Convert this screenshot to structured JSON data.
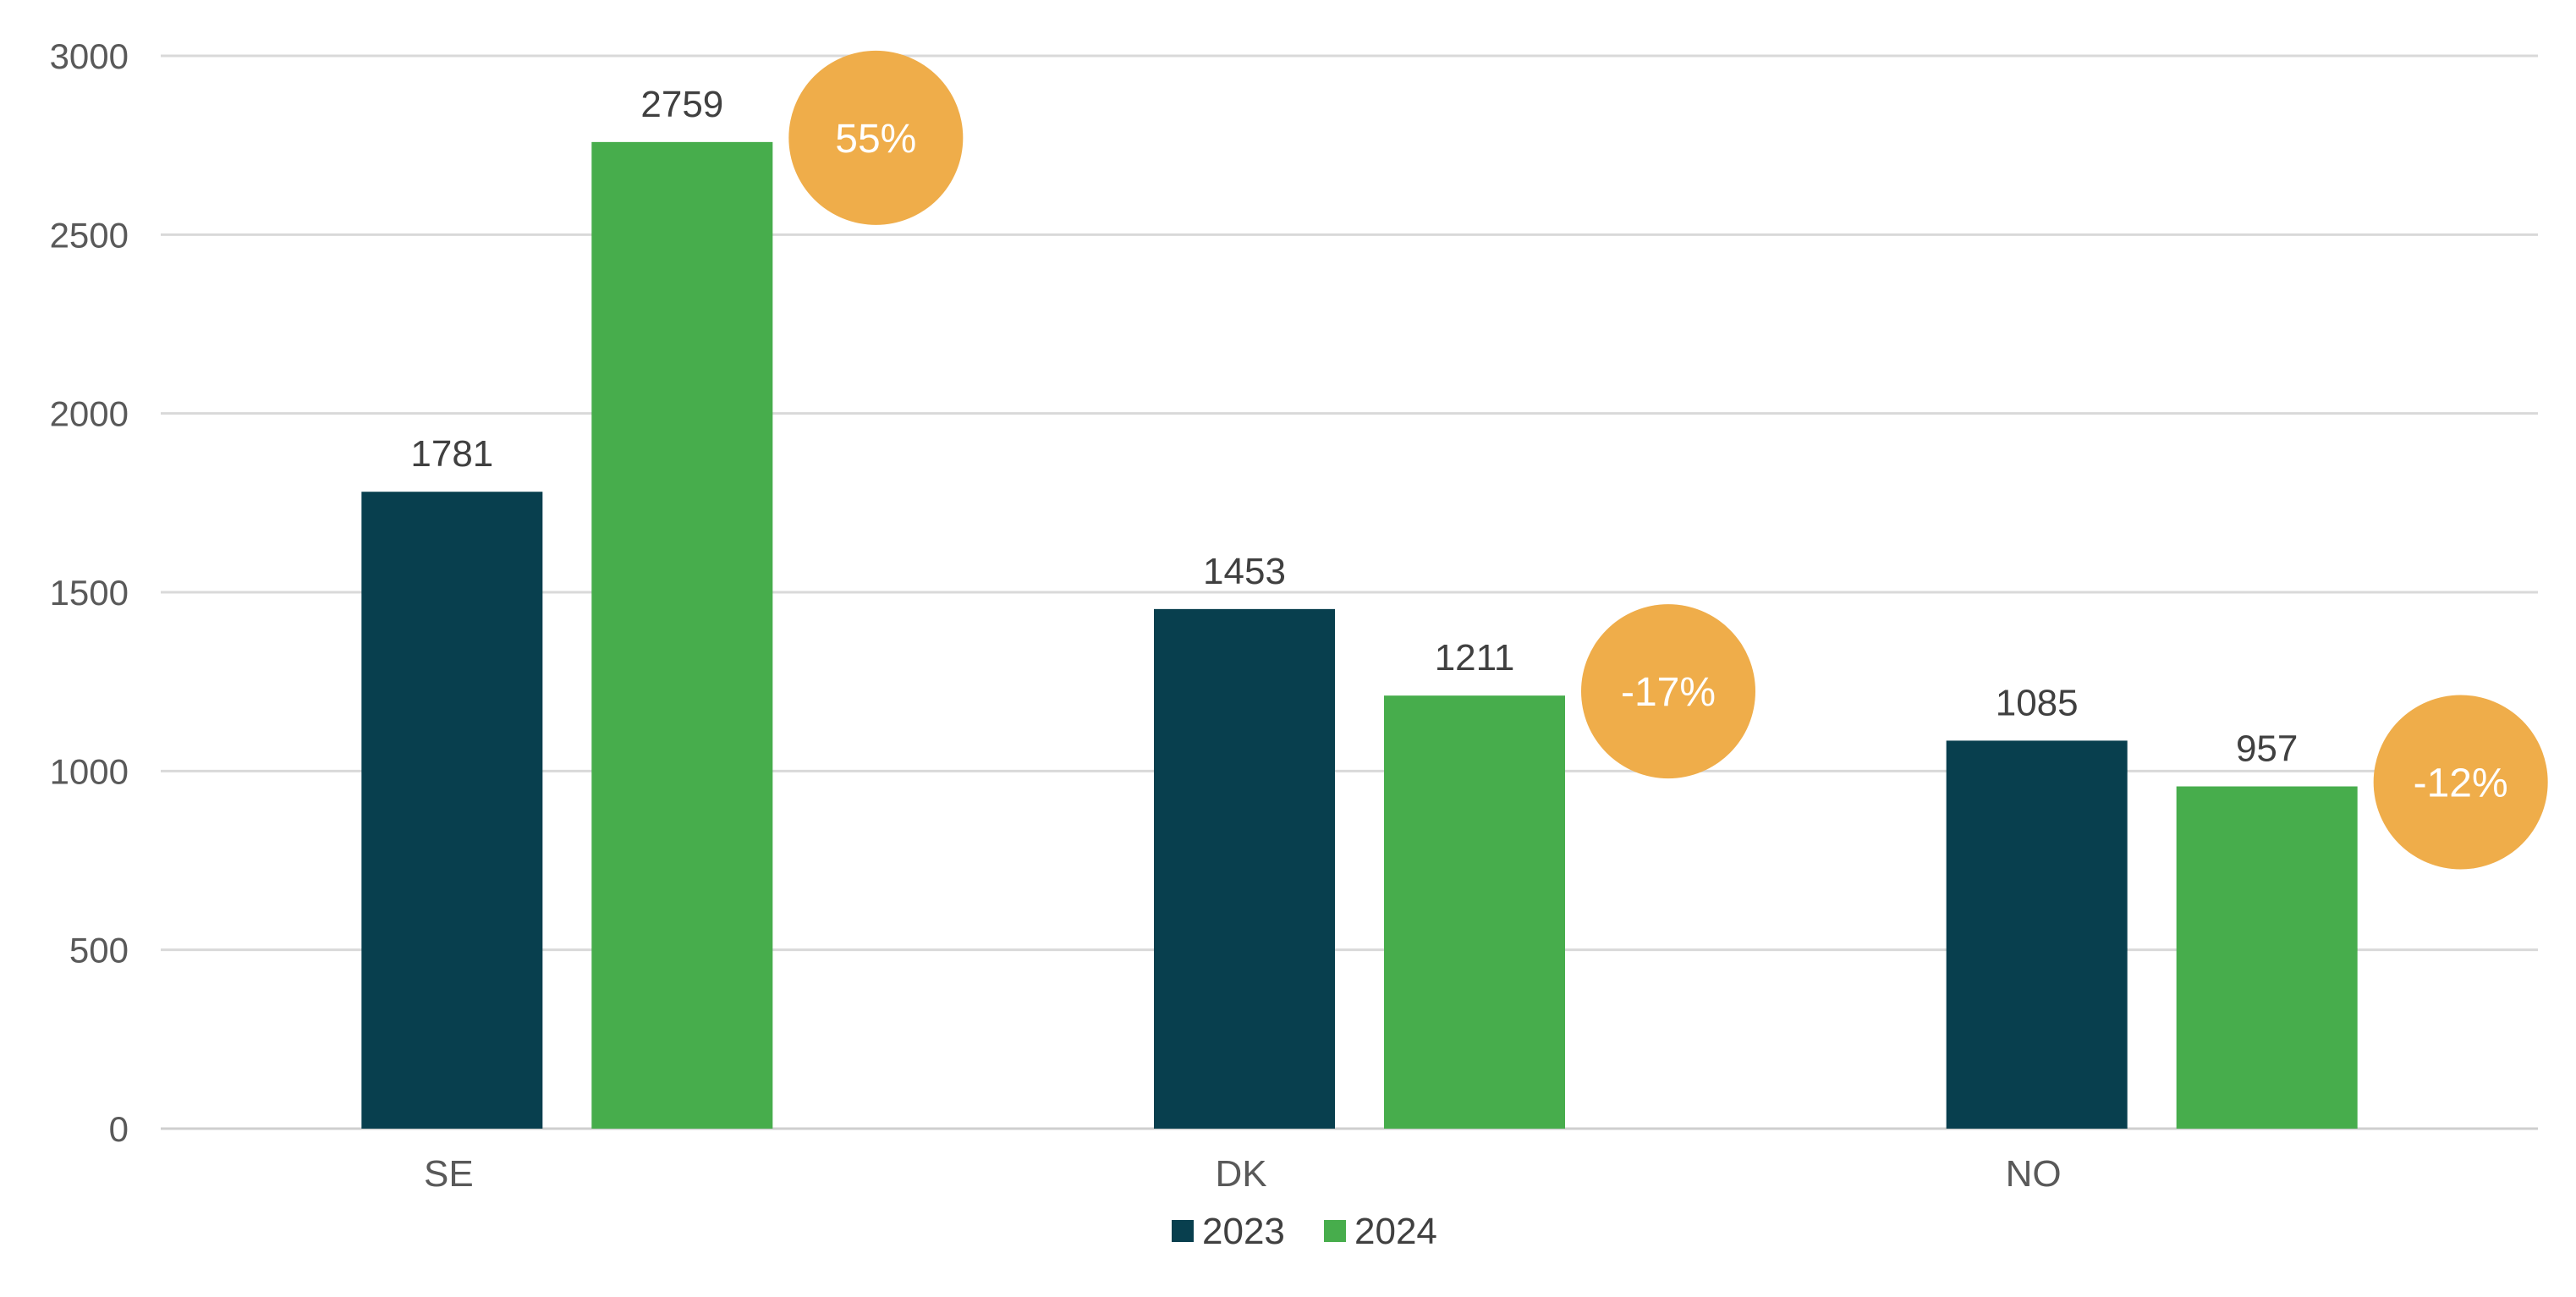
{
  "chart_data": {
    "type": "bar",
    "categories": [
      "SE",
      "DK",
      "NO"
    ],
    "series": [
      {
        "name": "2023",
        "values": [
          1781,
          1453,
          1085
        ],
        "color": "#083f4e"
      },
      {
        "name": "2024",
        "values": [
          2759,
          1211,
          957
        ],
        "color": "#47ad4c"
      }
    ],
    "change_labels": [
      "55%",
      "-17%",
      "-12%"
    ],
    "change_color": "#efad4a",
    "ylim": [
      0,
      3000
    ],
    "yticks": [
      0,
      500,
      1000,
      1500,
      2000,
      2500,
      3000
    ],
    "grid": true,
    "legend_position": "bottom-center",
    "title": "",
    "xlabel": "",
    "ylabel": ""
  }
}
